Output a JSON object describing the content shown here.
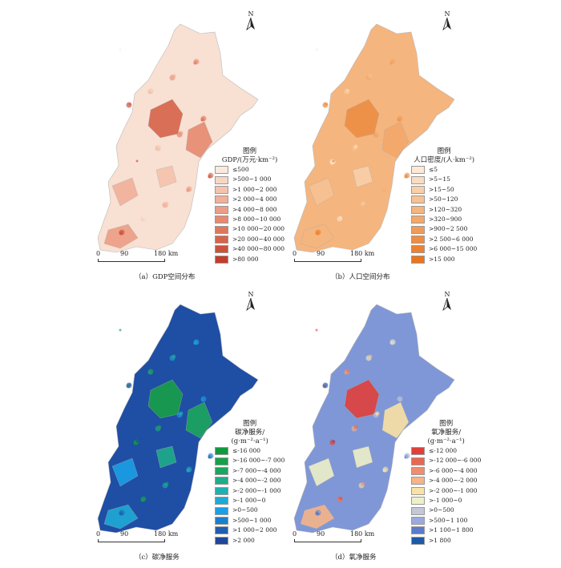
{
  "north_label": "N",
  "scale": {
    "ticks": [
      "0",
      "90",
      "180 km"
    ]
  },
  "panels": [
    {
      "id": "a",
      "caption": "（a）GDP空间分布",
      "legend_title": "图例",
      "legend_unit": "GDP/(万元·km⁻²)",
      "base_color": "#f8e0d2",
      "accent_color": "#c8442c",
      "items": [
        {
          "label": "≤500",
          "color": "#fbe9dd"
        },
        {
          "label": ">500~1 000",
          "color": "#f8d6c4"
        },
        {
          "label": ">1 000~2 000",
          "color": "#f5c3ad"
        },
        {
          "label": ">2 000~4 000",
          "color": "#f1b09a"
        },
        {
          "label": ">4 000~8 000",
          "color": "#ec9d85"
        },
        {
          "label": ">8 000~10 000",
          "color": "#e68a70"
        },
        {
          "label": ">10 000~20 000",
          "color": "#df775d"
        },
        {
          "label": ">20 000~40 000",
          "color": "#d6634a"
        },
        {
          "label": ">40 000~80 000",
          "color": "#cc503a"
        },
        {
          "label": ">80 000",
          "color": "#c23e2c"
        }
      ]
    },
    {
      "id": "b",
      "caption": "（b）人口空间分布",
      "legend_title": "图例",
      "legend_unit": "人口密度/(人·km⁻²)",
      "base_color": "#f5b57e",
      "accent_color": "#e8781f",
      "items": [
        {
          "label": "≤5",
          "color": "#fde9d6"
        },
        {
          "label": ">5~15",
          "color": "#fbdcc0"
        },
        {
          "label": ">15~50",
          "color": "#f9cfa9"
        },
        {
          "label": ">50~120",
          "color": "#f7c293"
        },
        {
          "label": ">120~320",
          "color": "#f5b57e"
        },
        {
          "label": ">320~900",
          "color": "#f3a86a"
        },
        {
          "label": ">900~2 500",
          "color": "#f19b56"
        },
        {
          "label": ">2 500~6 000",
          "color": "#ee8e43"
        },
        {
          "label": ">6 000~15 000",
          "color": "#ec8231"
        },
        {
          "label": ">15 000",
          "color": "#e9761f"
        }
      ]
    },
    {
      "id": "c",
      "caption": "（c）碳净服务",
      "legend_title": "图例",
      "legend_unit": "碳净服务/",
      "legend_unit2": "(g·m⁻²·a⁻¹)",
      "base_color": "#1f4ea5",
      "accent_color": "#1aa34a",
      "items": [
        {
          "label": "≤-16 000",
          "color": "#0f9a3e"
        },
        {
          "label": ">-16 000~-7 000",
          "color": "#18a048"
        },
        {
          "label": ">-7 000~-4 000",
          "color": "#1ba65e"
        },
        {
          "label": ">-4 000~-2 000",
          "color": "#1fac8a"
        },
        {
          "label": ">-2 000~-1 000",
          "color": "#1fb0b4"
        },
        {
          "label": ">-1 000~0",
          "color": "#1eaad6"
        },
        {
          "label": ">0~500",
          "color": "#1a9fe6"
        },
        {
          "label": ">500~1 000",
          "color": "#1b7fcb"
        },
        {
          "label": ">1 000~2 000",
          "color": "#1f5fb0"
        },
        {
          "label": ">2 000",
          "color": "#21479a"
        }
      ]
    },
    {
      "id": "d",
      "caption": "（d）氧净服务",
      "legend_title": "图例",
      "legend_unit": "氧净服务/",
      "legend_unit2": "(g·m⁻²·a⁻¹)",
      "base_color": "#7f97d6",
      "accent_color": "#e0403a",
      "items": [
        {
          "label": "≤-12 000",
          "color": "#e0403a"
        },
        {
          "label": ">-12 000~-6 000",
          "color": "#ea6650"
        },
        {
          "label": ">-6 000~-4 000",
          "color": "#f08d6d"
        },
        {
          "label": ">-4 000~-2 000",
          "color": "#f6b489"
        },
        {
          "label": ">-2 000~-1 000",
          "color": "#fae2a4"
        },
        {
          "label": ">-1 000~0",
          "color": "#eef0c8"
        },
        {
          "label": ">0~500",
          "color": "#c4c8d6"
        },
        {
          "label": ">500~1 100",
          "color": "#9aa9e0"
        },
        {
          "label": ">1 100~1 800",
          "color": "#5b7ccb"
        },
        {
          "label": ">1 800",
          "color": "#1d5aa8"
        }
      ]
    }
  ]
}
